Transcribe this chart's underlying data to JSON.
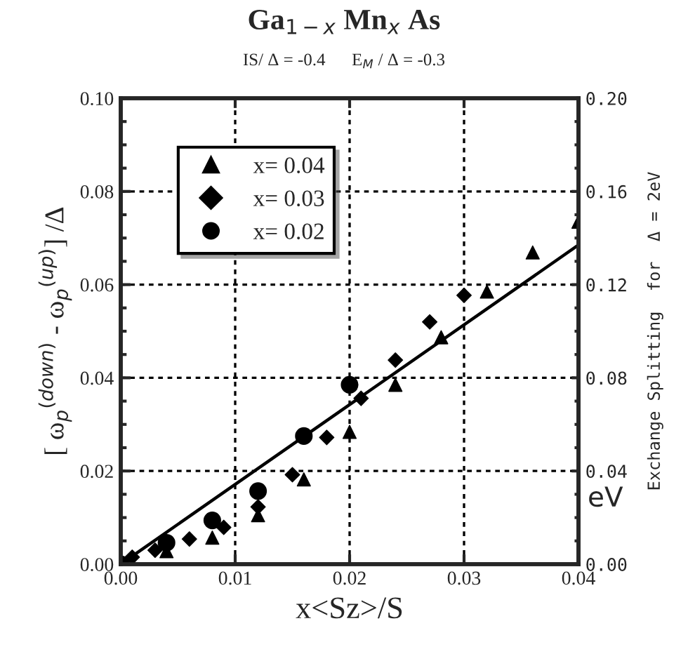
{
  "chart_data": {
    "type": "scatter",
    "title": "Ga$_{1−x}$ Mn$_{x}$ As",
    "subtitle": "IS/ Δ = -0.4      E$_{M}$ / Δ = -0.3",
    "xlabel": "x<Sz>/S",
    "ylabel": "[ ω$_{p}$$^{(down)}$ - ω$_{p}$$^{(up)}$] /Δ",
    "y2label": "Exchange Splitting  for  Δ = 2eV",
    "annotations": [
      "eV"
    ],
    "series": [
      {
        "name": "x= 0.04",
        "color": "#000000",
        "marker": "triangle",
        "x": [
          0.004,
          0.008,
          0.012,
          0.016,
          0.02,
          0.024,
          0.028,
          0.032,
          0.036,
          0.04
        ],
        "values": [
          0.0028,
          0.0057,
          0.0105,
          0.0182,
          0.0284,
          0.0385,
          0.0487,
          0.0585,
          0.0669,
          0.0735
        ]
      },
      {
        "name": "x= 0.03",
        "color": "#000000",
        "marker": "diamond",
        "x": [
          0.001,
          0.003,
          0.006,
          0.009,
          0.012,
          0.015,
          0.018,
          0.021,
          0.024,
          0.027,
          0.03
        ],
        "values": [
          0.0015,
          0.003,
          0.0054,
          0.0079,
          0.0123,
          0.0192,
          0.0272,
          0.0356,
          0.0438,
          0.052,
          0.0577
        ]
      },
      {
        "name": "x= 0.02",
        "color": "#000000",
        "marker": "circle",
        "x": [
          0.0,
          0.004,
          0.008,
          0.012,
          0.016,
          0.02
        ],
        "values": [
          0.0,
          0.0046,
          0.0094,
          0.0157,
          0.0275,
          0.0385
        ]
      },
      {
        "type": "line",
        "color": "#000000",
        "line_style": "solid",
        "x": [
          0.0,
          0.04
        ],
        "values": [
          0.0,
          0.0685
        ]
      }
    ],
    "xlim": [
      0.0,
      0.04
    ],
    "xticks": [
      {
        "value": 0.0,
        "label": "0.00"
      },
      {
        "value": 0.01,
        "label": "0.01"
      },
      {
        "value": 0.02,
        "label": "0.02"
      },
      {
        "value": 0.03,
        "label": "0.03"
      },
      {
        "value": 0.04,
        "label": "0.04"
      }
    ],
    "ylim": [
      0.0,
      0.1
    ],
    "yticks": [
      {
        "value": 0.0,
        "label": "0.00"
      },
      {
        "value": 0.02,
        "label": "0.02"
      },
      {
        "value": 0.04,
        "label": "0.04"
      },
      {
        "value": 0.06,
        "label": "0.06"
      },
      {
        "value": 0.08,
        "label": "0.08"
      },
      {
        "value": 0.1,
        "label": "0.10"
      }
    ],
    "y2lim": [
      0.0,
      0.2
    ],
    "y2ticks": [
      {
        "value": 0.0,
        "label": "0.00"
      },
      {
        "value": 0.04,
        "label": "0.04"
      },
      {
        "value": 0.08,
        "label": "0.08"
      },
      {
        "value": 0.12,
        "label": "0.12"
      },
      {
        "value": 0.16,
        "label": "0.16"
      },
      {
        "value": 0.2,
        "label": "0.20"
      }
    ],
    "grid": true,
    "legend": "top left"
  }
}
